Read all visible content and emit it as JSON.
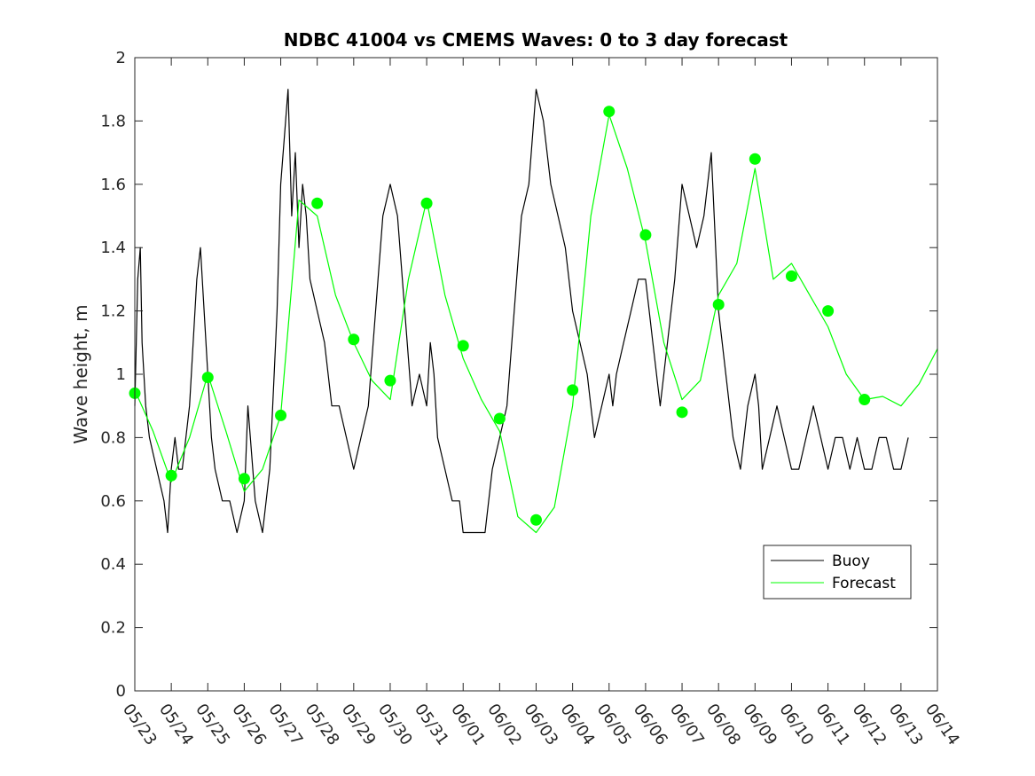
{
  "chart_data": {
    "type": "line",
    "title": "NDBC 41004 vs CMEMS Waves: 0 to 3 day forecast",
    "xlabel": "",
    "ylabel": "Wave height, m",
    "xlim": [
      0,
      22
    ],
    "ylim": [
      0,
      2
    ],
    "x_tick_labels": [
      "05/23",
      "05/24",
      "05/25",
      "05/26",
      "05/27",
      "05/28",
      "05/29",
      "05/30",
      "05/31",
      "06/01",
      "06/02",
      "06/03",
      "06/04",
      "06/05",
      "06/06",
      "06/07",
      "06/08",
      "06/09",
      "06/10",
      "06/11",
      "06/12",
      "06/13",
      "06/14"
    ],
    "y_ticks": [
      0,
      0.2,
      0.4,
      0.6,
      0.8,
      1,
      1.2,
      1.4,
      1.6,
      1.8,
      2
    ],
    "y_tick_labels": [
      "0",
      "0.2",
      "0.4",
      "0.6",
      "0.8",
      "1",
      "1.2",
      "1.4",
      "1.6",
      "1.8",
      "2"
    ],
    "grid": false,
    "legend_position": "bottom-right",
    "legend": [
      "Buoy",
      "Forecast"
    ],
    "colors": {
      "buoy": "#000000",
      "forecast": "#00ff00"
    },
    "series": [
      {
        "name": "Buoy",
        "x": [
          0,
          0.08,
          0.15,
          0.2,
          0.3,
          0.4,
          0.6,
          0.8,
          0.9,
          1.0,
          1.1,
          1.2,
          1.3,
          1.5,
          1.7,
          1.8,
          2.0,
          2.1,
          2.2,
          2.4,
          2.6,
          2.8,
          3.0,
          3.1,
          3.3,
          3.5,
          3.7,
          3.9,
          4.0,
          4.2,
          4.3,
          4.4,
          4.5,
          4.6,
          4.7,
          4.8,
          5.0,
          5.2,
          5.4,
          5.6,
          5.8,
          6.0,
          6.2,
          6.4,
          6.6,
          6.8,
          7.0,
          7.2,
          7.4,
          7.6,
          7.8,
          8.0,
          8.1,
          8.2,
          8.3,
          8.5,
          8.7,
          8.9,
          9.0,
          9.2,
          9.4,
          9.6,
          9.8,
          10.0,
          10.2,
          10.4,
          10.6,
          10.8,
          11.0,
          11.2,
          11.4,
          11.6,
          11.8,
          12.0,
          12.2,
          12.4,
          12.6,
          12.8,
          13.0,
          13.1,
          13.2,
          13.4,
          13.6,
          13.8,
          14.0,
          14.2,
          14.4,
          14.6,
          14.8,
          15.0,
          15.2,
          15.4,
          15.6,
          15.8,
          16.0,
          16.2,
          16.4,
          16.6,
          16.8,
          17.0,
          17.1,
          17.2,
          17.4,
          17.6,
          17.8,
          18.0,
          18.2,
          18.4,
          18.6,
          18.8,
          19.0,
          19.2,
          19.4,
          19.6,
          19.8,
          20.0,
          20.2,
          20.4,
          20.6,
          20.8,
          21.0,
          21.2
        ],
        "y": [
          0.9,
          1.3,
          1.4,
          1.1,
          0.9,
          0.8,
          0.7,
          0.6,
          0.5,
          0.7,
          0.8,
          0.7,
          0.7,
          0.9,
          1.3,
          1.4,
          1.0,
          0.8,
          0.7,
          0.6,
          0.6,
          0.5,
          0.6,
          0.9,
          0.6,
          0.5,
          0.7,
          1.2,
          1.6,
          1.9,
          1.5,
          1.7,
          1.4,
          1.6,
          1.5,
          1.3,
          1.2,
          1.1,
          0.9,
          0.9,
          0.8,
          0.7,
          0.8,
          0.9,
          1.2,
          1.5,
          1.6,
          1.5,
          1.2,
          0.9,
          1.0,
          0.9,
          1.1,
          1.0,
          0.8,
          0.7,
          0.6,
          0.6,
          0.5,
          0.5,
          0.5,
          0.5,
          0.7,
          0.8,
          0.9,
          1.2,
          1.5,
          1.6,
          1.9,
          1.8,
          1.6,
          1.5,
          1.4,
          1.2,
          1.1,
          1.0,
          0.8,
          0.9,
          1.0,
          0.9,
          1.0,
          1.1,
          1.2,
          1.3,
          1.3,
          1.1,
          0.9,
          1.1,
          1.3,
          1.6,
          1.5,
          1.4,
          1.5,
          1.7,
          1.2,
          1.0,
          0.8,
          0.7,
          0.9,
          1.0,
          0.9,
          0.7,
          0.8,
          0.9,
          0.8,
          0.7,
          0.7,
          0.8,
          0.9,
          0.8,
          0.7,
          0.8,
          0.8,
          0.7,
          0.8,
          0.7,
          0.7,
          0.8,
          0.8,
          0.7,
          0.7,
          0.8
        ]
      },
      {
        "name": "Forecast",
        "x": [
          0,
          0.5,
          1.0,
          1.5,
          2.0,
          2.5,
          3.0,
          3.5,
          4.0,
          4.5,
          5.0,
          5.5,
          6.0,
          6.5,
          7.0,
          7.5,
          8.0,
          8.5,
          9.0,
          9.5,
          10.0,
          10.5,
          11.0,
          11.5,
          12.0,
          12.5,
          13.0,
          13.5,
          14.0,
          14.5,
          15.0,
          15.5,
          16.0,
          16.5,
          17.0,
          17.5,
          18.0,
          18.5,
          19.0,
          19.5,
          20.0,
          20.5,
          21.0,
          21.5,
          22.0
        ],
        "y": [
          0.95,
          0.82,
          0.66,
          0.8,
          1.0,
          0.82,
          0.63,
          0.7,
          0.87,
          1.55,
          1.5,
          1.25,
          1.1,
          0.98,
          0.92,
          1.3,
          1.55,
          1.25,
          1.05,
          0.92,
          0.82,
          0.55,
          0.5,
          0.58,
          0.9,
          1.5,
          1.82,
          1.65,
          1.42,
          1.1,
          0.92,
          0.98,
          1.25,
          1.35,
          1.65,
          1.3,
          1.35,
          1.25,
          1.15,
          1.0,
          0.92,
          0.93,
          0.9,
          0.97,
          1.08
        ]
      }
    ],
    "markers": {
      "x": [
        0,
        1,
        2,
        3,
        4,
        5,
        6,
        7,
        8,
        9,
        10,
        11,
        12,
        13,
        14,
        15,
        16,
        17,
        18,
        19,
        20
      ],
      "y": [
        0.94,
        0.68,
        0.99,
        0.67,
        0.87,
        1.54,
        1.11,
        0.98,
        1.54,
        1.09,
        0.86,
        0.54,
        0.95,
        1.83,
        1.44,
        0.88,
        1.22,
        1.68,
        1.31,
        1.2,
        0.92
      ]
    }
  }
}
